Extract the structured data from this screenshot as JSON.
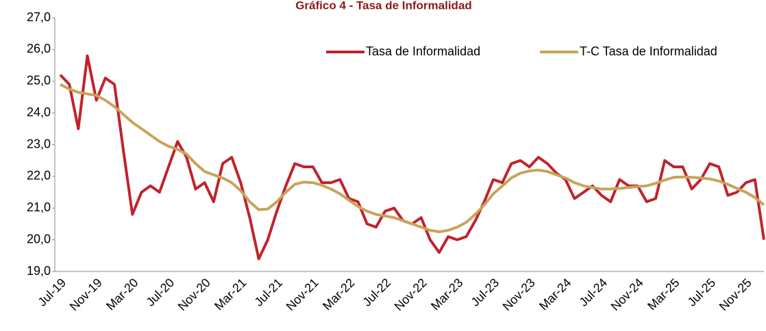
{
  "chart_data": {
    "type": "line",
    "title": "Gráfico 4 - Tasa de Informalidad",
    "categories": [
      "Jul-19",
      null,
      null,
      null,
      "Nov-19",
      null,
      null,
      null,
      "Mar-20",
      null,
      null,
      null,
      "Jul-20",
      null,
      null,
      null,
      "Nov-20",
      null,
      null,
      null,
      "Mar-21",
      null,
      null,
      null,
      "Jul-21",
      null,
      null,
      null,
      "Nov-21",
      null,
      null,
      null,
      "Mar-22",
      null,
      null,
      null,
      "Jul-22",
      null,
      null,
      null,
      "Nov-22",
      null,
      null,
      null,
      "Mar-23",
      null,
      null,
      null,
      "Jul-23",
      null,
      null,
      null,
      "Nov-23",
      null,
      null,
      null,
      "Mar-24",
      null,
      null,
      null,
      "Jul-24",
      null,
      null,
      null,
      "Nov-24",
      null,
      null,
      null,
      "Mar-25",
      null,
      null,
      null,
      "Jul-25",
      null,
      null,
      null,
      "Nov-25",
      null,
      null
    ],
    "series": [
      {
        "name": "Tasa de Informalidad",
        "color": "#c0232c",
        "values": [
          25.2,
          24.9,
          23.5,
          25.8,
          24.4,
          25.1,
          24.9,
          22.8,
          20.8,
          21.5,
          21.7,
          21.5,
          22.3,
          23.1,
          22.6,
          21.6,
          21.8,
          21.2,
          22.4,
          22.6,
          21.8,
          20.7,
          19.4,
          20.0,
          20.9,
          21.7,
          22.4,
          22.3,
          22.3,
          21.8,
          21.8,
          21.9,
          21.3,
          21.2,
          20.5,
          20.4,
          20.9,
          21.0,
          20.6,
          20.5,
          20.7,
          20.0,
          19.6,
          20.1,
          20.0,
          20.1,
          20.6,
          21.2,
          21.9,
          21.8,
          22.4,
          22.5,
          22.3,
          22.6,
          22.4,
          22.1,
          21.9,
          21.3,
          21.5,
          21.7,
          21.4,
          21.2,
          21.9,
          21.7,
          21.7,
          21.2,
          21.3,
          22.5,
          22.3,
          22.3,
          21.6,
          21.9,
          22.4,
          22.3,
          21.4,
          21.5,
          21.8,
          21.9,
          20.0
        ]
      },
      {
        "name": "T-C Tasa de Informalidad",
        "color": "#c9a35a",
        "values": [
          24.9,
          24.75,
          24.65,
          24.6,
          24.55,
          24.4,
          24.2,
          23.95,
          23.7,
          23.5,
          23.3,
          23.1,
          22.95,
          22.85,
          22.7,
          22.4,
          22.15,
          22.05,
          21.95,
          21.8,
          21.55,
          21.2,
          20.95,
          20.97,
          21.2,
          21.5,
          21.75,
          21.82,
          21.8,
          21.72,
          21.6,
          21.45,
          21.25,
          21.05,
          20.9,
          20.8,
          20.75,
          20.7,
          20.6,
          20.5,
          20.4,
          20.3,
          20.25,
          20.3,
          20.4,
          20.55,
          20.8,
          21.1,
          21.45,
          21.7,
          21.95,
          22.1,
          22.17,
          22.2,
          22.15,
          22.05,
          21.95,
          21.8,
          21.7,
          21.65,
          21.6,
          21.6,
          21.62,
          21.65,
          21.68,
          21.7,
          21.78,
          21.88,
          21.97,
          21.98,
          21.97,
          21.95,
          21.92,
          21.85,
          21.75,
          21.62,
          21.5,
          21.33,
          21.1
        ]
      }
    ],
    "ylim": [
      19,
      27
    ],
    "yticks": [
      {
        "value": 19,
        "label": "19,0"
      },
      {
        "value": 20,
        "label": "20,0"
      },
      {
        "value": 21,
        "label": "21,0"
      },
      {
        "value": 22,
        "label": "22,0"
      },
      {
        "value": 23,
        "label": "23,0"
      },
      {
        "value": 24,
        "label": "24,0"
      },
      {
        "value": 25,
        "label": "25,0"
      },
      {
        "value": 26,
        "label": "26,0"
      },
      {
        "value": 27,
        "label": "27,0"
      }
    ],
    "grid": false,
    "legend": "top-right"
  }
}
